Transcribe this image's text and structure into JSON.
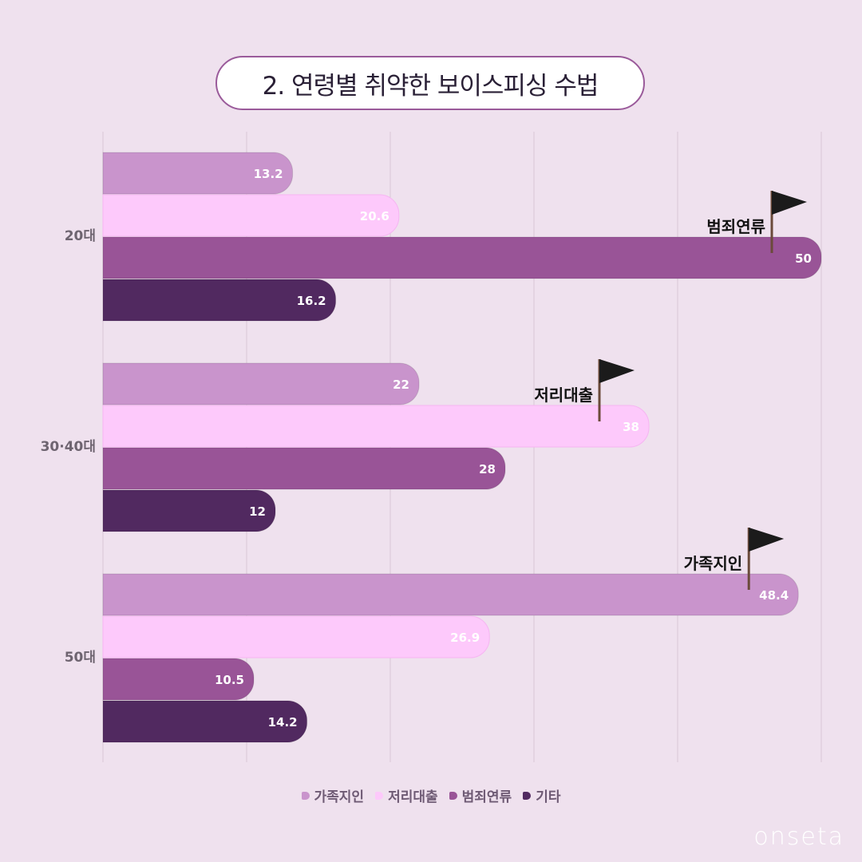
{
  "title": "2. 연령별 취약한 보이스피싱 수법",
  "watermark": "onseta",
  "colors": {
    "background": "#efe1ee",
    "grid": "#d9c6d6"
  },
  "chart_data": {
    "type": "bar",
    "orientation": "horizontal",
    "categories": [
      "20대",
      "30·40대",
      "50대"
    ],
    "series": [
      {
        "name": "가족지인",
        "color": "#c994cc",
        "values": [
          13.2,
          22,
          48.4
        ],
        "labels": [
          "13.2",
          "22",
          "48.4"
        ]
      },
      {
        "name": "저리대출",
        "color": "#fdc9fb",
        "values": [
          20.6,
          38,
          26.9
        ],
        "labels": [
          "20.6",
          "38",
          "26.9"
        ]
      },
      {
        "name": "범죄연류",
        "color": "#995497",
        "values": [
          50,
          28,
          10.5
        ],
        "labels": [
          "50",
          "28",
          "10.5"
        ]
      },
      {
        "name": "기타",
        "color": "#512960",
        "values": [
          16.2,
          12,
          14.2
        ],
        "labels": [
          "16.2",
          "12",
          "14.2"
        ]
      }
    ],
    "xlim": [
      0,
      50
    ],
    "grid": true,
    "legend_position": "bottom",
    "annotations": [
      {
        "category_index": 0,
        "series_index": 2,
        "text": "범죄연류"
      },
      {
        "category_index": 1,
        "series_index": 1,
        "text": "저리대출"
      },
      {
        "category_index": 2,
        "series_index": 0,
        "text": "가족지인"
      }
    ]
  }
}
